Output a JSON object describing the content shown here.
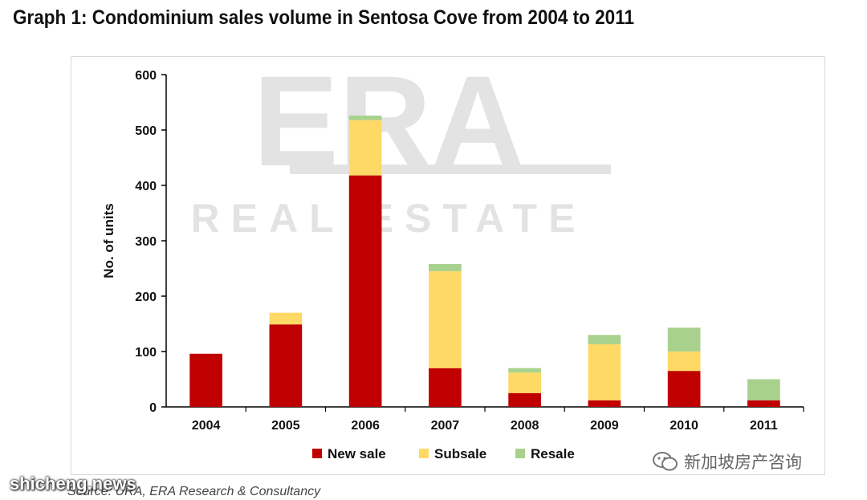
{
  "title": "Graph 1: Condominium sales volume in Sentosa Cove from 2004 to 2011",
  "source": "Source: URA, ERA Research & Consultancy",
  "watermark_site": "shicheng.news",
  "watermark_wechat": "新加坡房产咨询",
  "watermark_logo": {
    "brand": "ERA",
    "sub": "REAL ESTATE"
  },
  "colors": {
    "new_sale": "#c00000",
    "subsale": "#ffd966",
    "resale": "#a9d18e"
  },
  "chart_data": {
    "type": "bar",
    "stacked": true,
    "categories": [
      "2004",
      "2005",
      "2006",
      "2007",
      "2008",
      "2009",
      "2010",
      "2011"
    ],
    "series": [
      {
        "name": "New sale",
        "values": [
          96,
          149,
          418,
          70,
          25,
          12,
          65,
          12
        ]
      },
      {
        "name": "Subsale",
        "values": [
          0,
          21,
          100,
          175,
          37,
          101,
          35,
          0
        ]
      },
      {
        "name": "Resale",
        "values": [
          0,
          0,
          8,
          13,
          8,
          17,
          43,
          38
        ]
      }
    ],
    "ylabel": "No. of units",
    "xlabel": "",
    "ylim": [
      0,
      600
    ],
    "yticks": [
      0,
      100,
      200,
      300,
      400,
      500,
      600
    ],
    "grid": false,
    "legend_position": "bottom"
  }
}
